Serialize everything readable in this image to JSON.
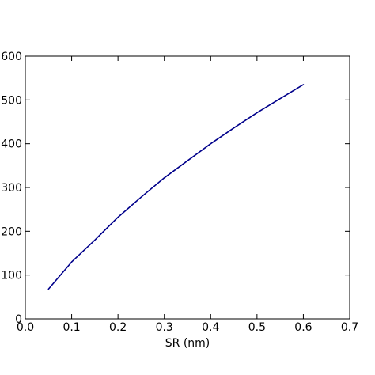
{
  "colors": {
    "line": "#00008B",
    "axis": "#000000",
    "background": "#ffffff"
  },
  "chart_data": {
    "type": "line",
    "title": "",
    "xlabel": "SR (nm)",
    "ylabel": "",
    "xlim": [
      0.0,
      0.7
    ],
    "ylim": [
      0,
      600
    ],
    "x_ticks": [
      0.0,
      0.1,
      0.2,
      0.3,
      0.4,
      0.5,
      0.6,
      0.7
    ],
    "x_tick_labels": [
      "0.0",
      "0.1",
      "0.2",
      "0.3",
      "0.4",
      "0.5",
      "0.6",
      "0.7"
    ],
    "y_ticks": [
      0,
      100,
      200,
      300,
      400,
      500,
      600
    ],
    "y_tick_labels": [
      "0",
      "100",
      "200",
      "300",
      "400",
      "500",
      "600"
    ],
    "grid": false,
    "series": [
      {
        "x": [
          0.05,
          0.1,
          0.15,
          0.2,
          0.25,
          0.3,
          0.35,
          0.4,
          0.45,
          0.5,
          0.55,
          0.6
        ],
        "y": [
          68,
          130,
          180,
          232,
          278,
          322,
          361,
          400,
          436,
          471,
          503,
          535
        ]
      }
    ]
  }
}
